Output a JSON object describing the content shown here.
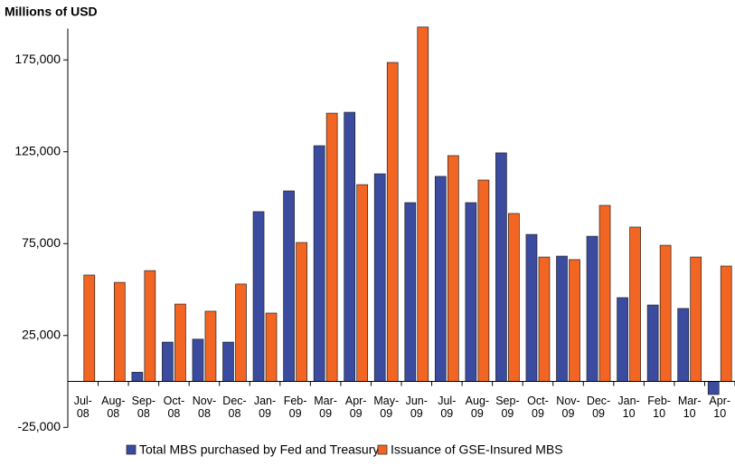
{
  "chart_data": {
    "type": "bar",
    "ylabel": "Millions of USD",
    "categories": [
      "Jul-\n08",
      "Aug-\n08",
      "Sep-\n08",
      "Oct-\n08",
      "Nov-\n08",
      "Dec-\n08",
      "Jan-\n09",
      "Feb-\n09",
      "Mar-\n09",
      "Apr-\n09",
      "May-\n09",
      "Jun-\n09",
      "Jul-\n09",
      "Aug-\n09",
      "Sep-\n09",
      "Oct-\n09",
      "Nov-\n09",
      "Dec-\n09",
      "Jan-\n10",
      "Feb-\n10",
      "Mar-\n10",
      "Apr-\n10"
    ],
    "series": [
      {
        "name": "Total MBS purchased by Fed and Treasury",
        "color": "#3a4ba0",
        "values": [
          0,
          0,
          5000,
          21400,
          23000,
          21400,
          92400,
          103700,
          128300,
          146500,
          113000,
          97300,
          111600,
          97300,
          124400,
          80000,
          68200,
          79000,
          45600,
          41600,
          39700,
          -7100
        ]
      },
      {
        "name": "Issuance of GSE-Insured MBS",
        "color": "#f26522",
        "values": [
          57900,
          53900,
          60300,
          42100,
          38200,
          53000,
          37200,
          75600,
          146000,
          107100,
          173600,
          192900,
          122900,
          109600,
          91400,
          67700,
          66300,
          95800,
          84000,
          74100,
          67700,
          62800
        ]
      }
    ],
    "ylim": [
      -25000,
      195000
    ],
    "yticks": [
      {
        "value": -25000,
        "label": "-25,000"
      },
      {
        "value": 25000,
        "label": "25,000"
      },
      {
        "value": 75000,
        "label": "75,000"
      },
      {
        "value": 125000,
        "label": "125,000"
      },
      {
        "value": 175000,
        "label": "175,000"
      }
    ]
  }
}
